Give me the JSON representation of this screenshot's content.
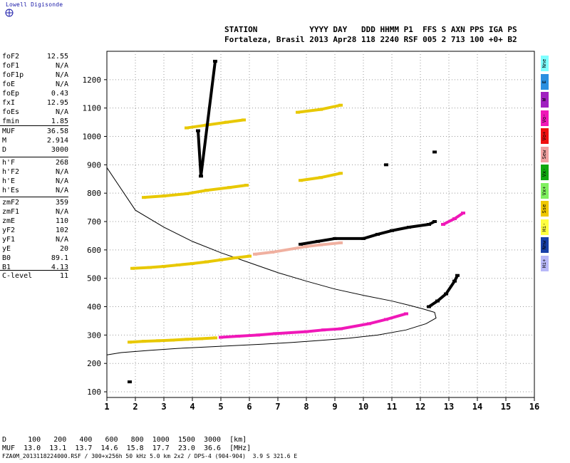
{
  "header": {
    "brand": "Lowell Digisonde",
    "line1": "STATION           YYYY DAY   DDD HHMM P1  FFS S AXN PPS IGA PS",
    "line2": "Fortaleza, Brasil 2013 Apr28 118 2240 RSF 005 2 713 100 +0+ B2"
  },
  "params": [
    {
      "label": "foF2",
      "value": "12.55"
    },
    {
      "label": "foF1",
      "value": "N/A"
    },
    {
      "label": "foF1p",
      "value": "N/A"
    },
    {
      "label": "foE",
      "value": "N/A"
    },
    {
      "label": "foEp",
      "value": "0.43"
    },
    {
      "label": "fxI",
      "value": "12.95"
    },
    {
      "label": "foEs",
      "value": "N/A"
    },
    {
      "label": "fmin",
      "value": "1.85"
    },
    {
      "label": "MUF",
      "value": "36.58"
    },
    {
      "label": "M",
      "value": "2.914"
    },
    {
      "label": "D",
      "value": "3000"
    },
    {
      "label": "h'F",
      "value": "268"
    },
    {
      "label": "h'F2",
      "value": "N/A"
    },
    {
      "label": "h'E",
      "value": "N/A"
    },
    {
      "label": "h'Es",
      "value": "N/A"
    },
    {
      "label": "zmF2",
      "value": "359"
    },
    {
      "label": "zmF1",
      "value": "N/A"
    },
    {
      "label": "zmE",
      "value": "110"
    },
    {
      "label": "yF2",
      "value": "102"
    },
    {
      "label": "yF1",
      "value": "N/A"
    },
    {
      "label": "yE",
      "value": "20"
    },
    {
      "label": "B0",
      "value": "89.1"
    },
    {
      "label": "B1",
      "value": "4.13"
    },
    {
      "label": "C-level",
      "value": "11"
    }
  ],
  "legend_tabs": [
    {
      "label": "Nne",
      "color": "#7fffff"
    },
    {
      "label": "E",
      "color": "#2a8fe0"
    },
    {
      "label": "W",
      "color": "#a020c0"
    },
    {
      "label": "Vo-",
      "color": "#f018b8"
    },
    {
      "label": "Vo+",
      "color": "#f01010"
    },
    {
      "label": "Sew",
      "color": "#f0a0a0"
    },
    {
      "label": "Vx-",
      "color": "#10a810"
    },
    {
      "label": "Vx+",
      "color": "#80f060"
    },
    {
      "label": "Sse",
      "color": "#f0c800"
    },
    {
      "label": "Hi-",
      "color": "#ffff40"
    },
    {
      "label": "Nnw",
      "color": "#1840a8"
    },
    {
      "label": "Hi+",
      "color": "#b8b8f8"
    }
  ],
  "footer": {
    "d_line": "D     100   200   400   600   800  1000  1500  3000  [km]",
    "muf_line": "MUF  13.0  13.1  13.7  14.6  15.8  17.7  23.0  36.6  [MHz]",
    "file_line": "FZA0M_2013118224000.RSF / 300+x256h 50 kHz 5.0 km 2x2 / DPS-4 (904-904)  3.9 S 321.6 E"
  },
  "chart_data": {
    "type": "scatter",
    "xlim": [
      1,
      16
    ],
    "ylim": [
      80,
      1300
    ],
    "x_ticks": [
      1,
      2,
      3,
      4,
      5,
      6,
      7,
      8,
      9,
      10,
      11,
      12,
      13,
      14,
      15,
      16
    ],
    "y_ticks": [
      100,
      200,
      300,
      400,
      500,
      600,
      700,
      800,
      900,
      1000,
      1100,
      1200
    ],
    "grid": true,
    "series": [
      {
        "color": "#e8c800",
        "points": [
          [
            1.8,
            275
          ],
          [
            2.3,
            278
          ],
          [
            2.8,
            280
          ],
          [
            3.3,
            282
          ],
          [
            3.8,
            285
          ],
          [
            4.3,
            287
          ],
          [
            4.8,
            290
          ]
        ]
      },
      {
        "color": "#f018b8",
        "points": [
          [
            5.0,
            292
          ],
          [
            5.6,
            296
          ],
          [
            6.3,
            300
          ],
          [
            6.9,
            305
          ],
          [
            8.0,
            312
          ],
          [
            8.6,
            318
          ],
          [
            9.2,
            322
          ],
          [
            10.2,
            340
          ],
          [
            10.8,
            355
          ],
          [
            11.5,
            375
          ]
        ]
      },
      {
        "color": "#e8c800",
        "points": [
          [
            1.9,
            535
          ],
          [
            2.5,
            538
          ],
          [
            3.0,
            542
          ],
          [
            3.5,
            547
          ],
          [
            4.0,
            552
          ],
          [
            4.5,
            558
          ],
          [
            5.0,
            565
          ],
          [
            5.5,
            572
          ],
          [
            6.0,
            578
          ]
        ]
      },
      {
        "color": "#f0b0a0",
        "points": [
          [
            6.2,
            585
          ],
          [
            6.8,
            592
          ],
          [
            8.0,
            612
          ],
          [
            8.5,
            618
          ],
          [
            9.2,
            625
          ]
        ]
      },
      {
        "color": "#000000",
        "points": [
          [
            7.8,
            620
          ],
          [
            8.4,
            630
          ],
          [
            9.0,
            640
          ],
          [
            10.0,
            640
          ],
          [
            10.5,
            655
          ],
          [
            11.0,
            668
          ],
          [
            11.6,
            680
          ],
          [
            12.3,
            690
          ],
          [
            12.5,
            700
          ]
        ]
      },
      {
        "color": "#e8c800",
        "points": [
          [
            2.3,
            785
          ],
          [
            3.0,
            790
          ],
          [
            3.8,
            798
          ],
          [
            4.5,
            810
          ],
          [
            5.3,
            820
          ],
          [
            5.9,
            828
          ]
        ]
      },
      {
        "color": "#e8c800",
        "points": [
          [
            7.8,
            845
          ],
          [
            8.5,
            855
          ],
          [
            9.2,
            870
          ]
        ]
      },
      {
        "color": "#e8c800",
        "points": [
          [
            3.8,
            1030
          ],
          [
            4.5,
            1040
          ],
          [
            5.2,
            1050
          ],
          [
            5.8,
            1058
          ]
        ]
      },
      {
        "color": "#e8c800",
        "points": [
          [
            7.7,
            1085
          ],
          [
            8.5,
            1095
          ],
          [
            9.2,
            1110
          ]
        ]
      },
      {
        "color": "#000000",
        "points": [
          [
            12.3,
            400
          ],
          [
            12.6,
            420
          ],
          [
            12.9,
            445
          ],
          [
            13.2,
            490
          ],
          [
            13.3,
            510
          ]
        ]
      },
      {
        "color": "#f018b8",
        "points": [
          [
            12.8,
            690
          ],
          [
            13.2,
            710
          ],
          [
            13.5,
            730
          ]
        ]
      },
      {
        "color": "#000000",
        "points": [
          [
            1.8,
            135
          ],
          [
            4.2,
            1020
          ],
          [
            4.3,
            860
          ],
          [
            4.8,
            1265
          ],
          [
            10.8,
            900
          ],
          [
            12.5,
            945
          ]
        ]
      }
    ],
    "profile": [
      [
        1.0,
        890
      ],
      [
        2.0,
        740
      ],
      [
        3.0,
        680
      ],
      [
        4.0,
        630
      ],
      [
        5.0,
        590
      ],
      [
        6.0,
        555
      ],
      [
        7.0,
        520
      ],
      [
        8.0,
        490
      ],
      [
        9.0,
        462
      ],
      [
        10.0,
        440
      ],
      [
        11.0,
        420
      ],
      [
        11.6,
        405
      ],
      [
        12.1,
        392
      ],
      [
        12.5,
        380
      ],
      [
        12.55,
        360
      ],
      [
        12.2,
        340
      ],
      [
        11.5,
        318
      ],
      [
        10.5,
        300
      ],
      [
        9.5,
        289
      ],
      [
        8.5,
        281
      ],
      [
        7.5,
        274
      ],
      [
        6.5,
        268
      ],
      [
        5.5,
        263
      ],
      [
        4.5,
        258
      ],
      [
        3.5,
        253
      ],
      [
        2.5,
        246
      ],
      [
        1.5,
        238
      ],
      [
        1.0,
        230
      ]
    ]
  }
}
